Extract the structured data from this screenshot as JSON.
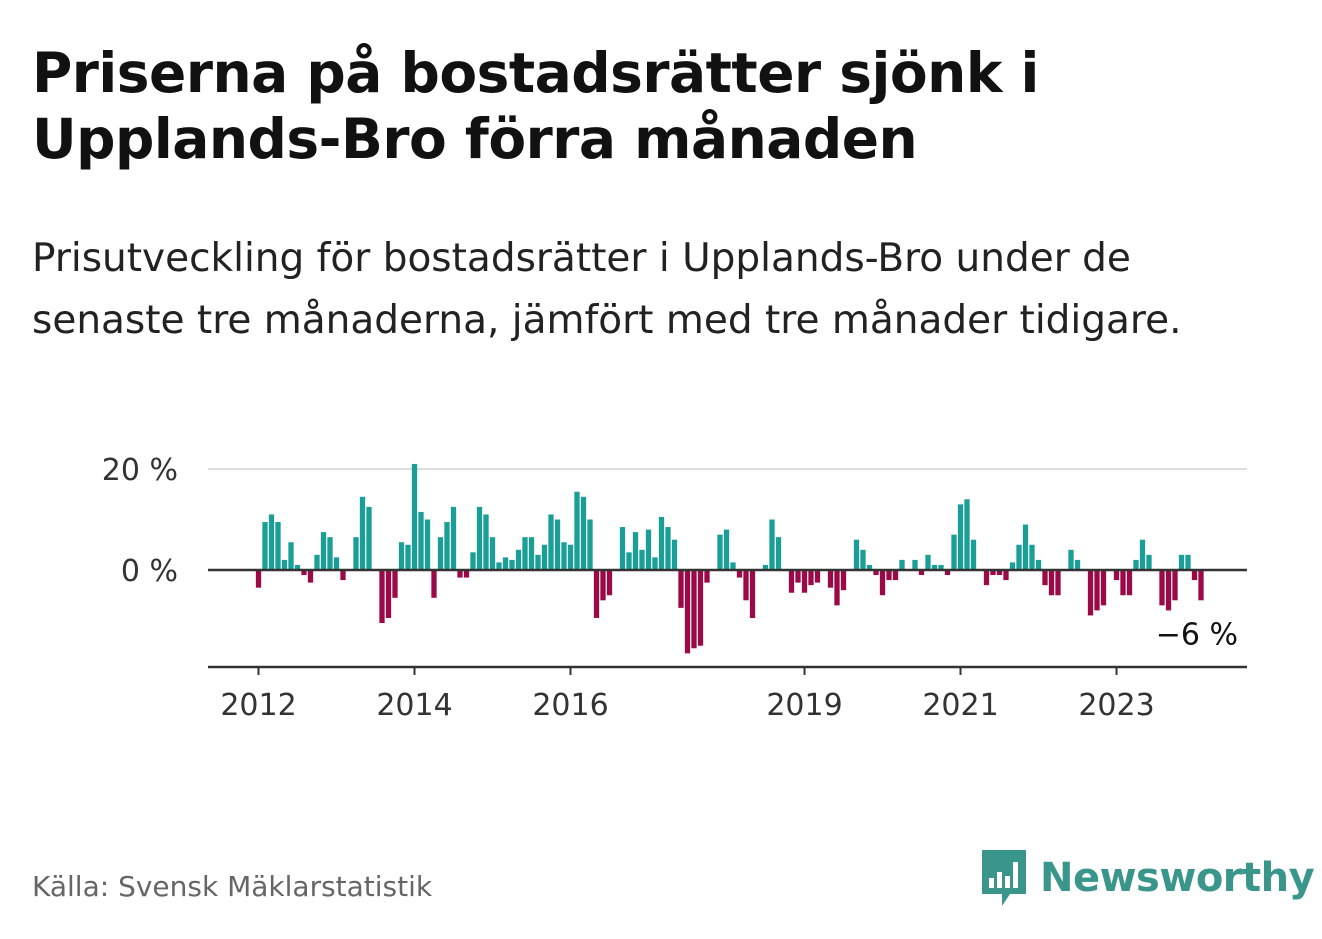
{
  "title": "Priserna på bostadsrätter sjönk i Upplands-Bro förra månaden",
  "subtitle": "Prisutveckling för bostadsrätter i Upplands-Bro under de senaste tre månaderna, jämfört med tre månader tidigare.",
  "source": "Källa: Svensk Mäklarstatistik",
  "brand": "Newsworthy",
  "colors": {
    "positive": "#1a9e96",
    "negative": "#9b0a47",
    "grid": "#dddddd",
    "axis": "#333333",
    "brand": "#3a968a"
  },
  "chart_data": {
    "type": "bar",
    "title": "",
    "xlabel": "",
    "ylabel": "",
    "ylim": [
      -19,
      22
    ],
    "start": "2012-01",
    "y_ticks": [
      {
        "value": 20,
        "label": "20 %"
      },
      {
        "value": 0,
        "label": "0 %"
      }
    ],
    "x_ticks": [
      {
        "index": 0,
        "label": "2012"
      },
      {
        "index": 24,
        "label": "2014"
      },
      {
        "index": 48,
        "label": "2016"
      },
      {
        "index": 84,
        "label": "2019"
      },
      {
        "index": 108,
        "label": "2021"
      },
      {
        "index": 132,
        "label": "2023"
      }
    ],
    "end_label": "−6 %",
    "values": [
      -3.5,
      9.5,
      11,
      9.5,
      2,
      5.5,
      1,
      -1,
      -2.5,
      3,
      7.5,
      6.5,
      2.5,
      -2,
      0,
      6.5,
      14.5,
      12.5,
      0,
      -10.5,
      -9.5,
      -5.5,
      5.5,
      5,
      21,
      11.5,
      10,
      -5.5,
      6.5,
      9.5,
      12.5,
      -1.5,
      -1.5,
      3.5,
      12.5,
      11,
      6.5,
      1.5,
      2.5,
      2,
      4,
      6.5,
      6.5,
      3,
      5,
      11,
      10,
      5.5,
      5,
      15.5,
      14.5,
      10,
      -9.5,
      -6,
      -5,
      0,
      8.5,
      3.5,
      7.5,
      4,
      8,
      2.5,
      10.5,
      8.5,
      6,
      -7.5,
      -16.5,
      -15.5,
      -15,
      -2.5,
      0,
      7,
      8,
      1.5,
      -1.5,
      -6,
      -9.5,
      0,
      1,
      10,
      6.5,
      0,
      -4.5,
      -2.5,
      -4.5,
      -3,
      -2.5,
      0,
      -3.5,
      -7,
      -4,
      0,
      6,
      4,
      1,
      -1,
      -5,
      -2,
      -2,
      2,
      0,
      2,
      -1,
      3,
      1,
      1,
      -1,
      7,
      13,
      14,
      6,
      0,
      -3,
      -1,
      -1,
      -2,
      1.5,
      5,
      9,
      5,
      2,
      -3,
      -5,
      -5,
      0,
      4,
      2,
      0,
      -9,
      -8,
      -7,
      0,
      -2,
      -5,
      -5,
      2,
      6,
      3,
      0,
      -7,
      -8,
      -6,
      3,
      3,
      -2,
      -6
    ]
  }
}
